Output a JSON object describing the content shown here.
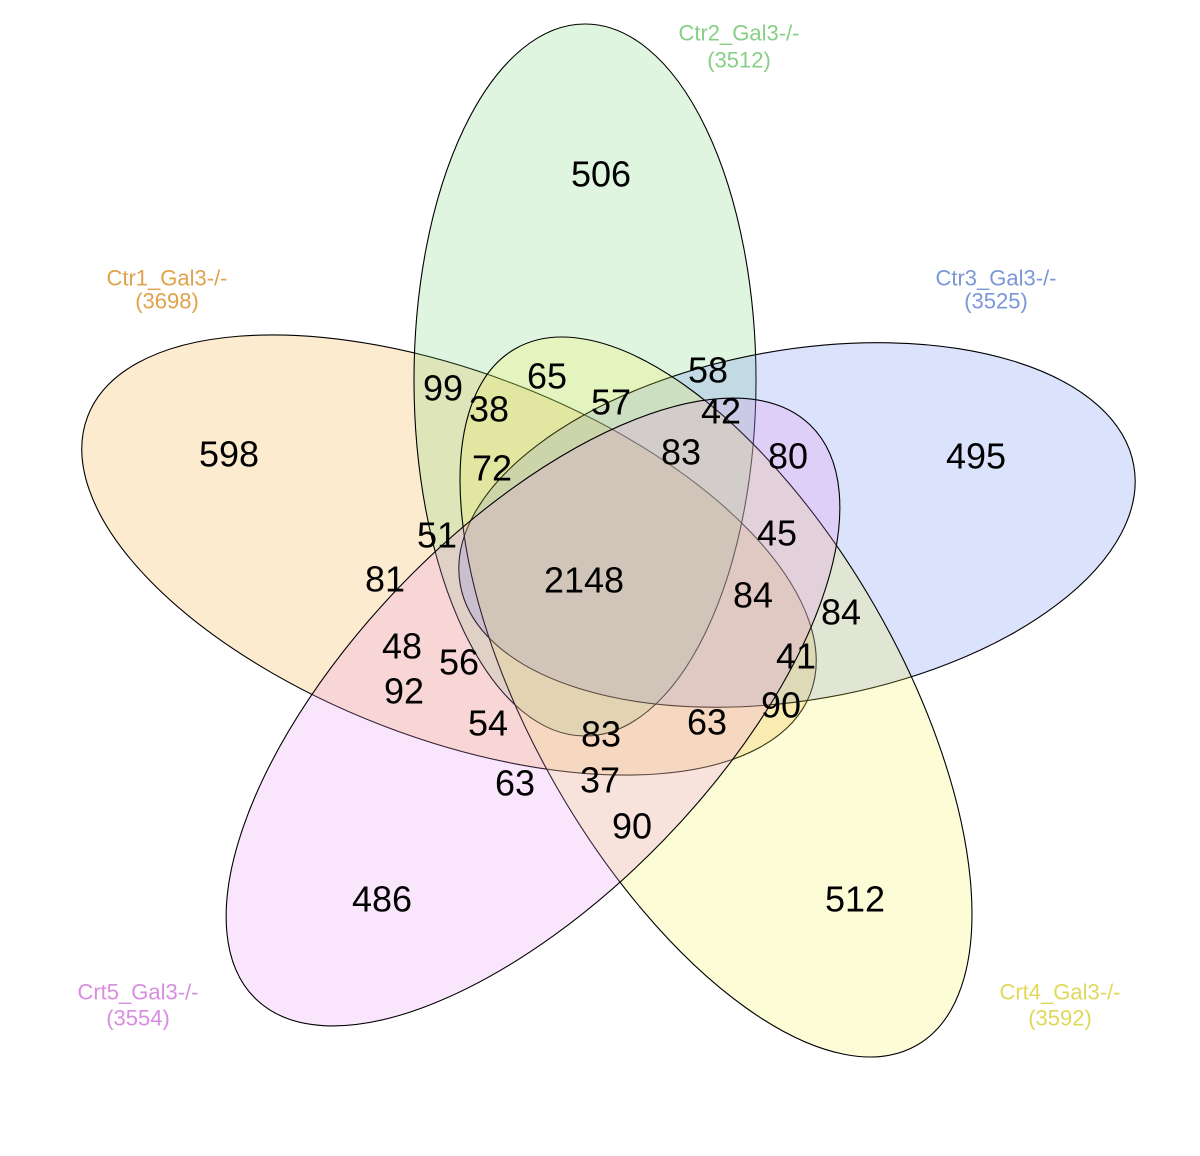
{
  "sets": [
    {
      "id": "ctr1",
      "name": "Ctr1_Gal3-/-",
      "total": "(3698)",
      "color": "#f5a623",
      "label_color": "#e0a24a"
    },
    {
      "id": "ctr2",
      "name": "Ctr2_Gal3-/-",
      "total": "(3512)",
      "color": "#6fd36f",
      "label_color": "#86cf86"
    },
    {
      "id": "ctr3",
      "name": "Ctr3_Gal3-/-",
      "total": "(3525)",
      "color": "#5b7cf0",
      "label_color": "#7b97d8"
    },
    {
      "id": "crt4",
      "name": "Crt4_Gal3-/-",
      "total": "(3592)",
      "color": "#f2f24a",
      "label_color": "#e0d85a"
    },
    {
      "id": "crt5",
      "name": "Crt5_Gal3-/-",
      "total": "(3554)",
      "color": "#e98cf0",
      "label_color": "#d88ee0"
    }
  ],
  "regions": [
    {
      "id": "only-ctr2",
      "value": "506"
    },
    {
      "id": "only-ctr1",
      "value": "598"
    },
    {
      "id": "only-ctr3",
      "value": "495"
    },
    {
      "id": "only-crt5",
      "value": "486"
    },
    {
      "id": "only-crt4",
      "value": "512"
    },
    {
      "id": "all-five",
      "value": "2148"
    },
    {
      "id": "r-99",
      "value": "99"
    },
    {
      "id": "r-65",
      "value": "65"
    },
    {
      "id": "r-58",
      "value": "58"
    },
    {
      "id": "r-38",
      "value": "38"
    },
    {
      "id": "r-57",
      "value": "57"
    },
    {
      "id": "r-42",
      "value": "42"
    },
    {
      "id": "r-72",
      "value": "72"
    },
    {
      "id": "r-83-top",
      "value": "83"
    },
    {
      "id": "r-80",
      "value": "80"
    },
    {
      "id": "r-51",
      "value": "51"
    },
    {
      "id": "r-45",
      "value": "45"
    },
    {
      "id": "r-81",
      "value": "81"
    },
    {
      "id": "r-84-inner",
      "value": "84"
    },
    {
      "id": "r-84-outer",
      "value": "84"
    },
    {
      "id": "r-48",
      "value": "48"
    },
    {
      "id": "r-56",
      "value": "56"
    },
    {
      "id": "r-41",
      "value": "41"
    },
    {
      "id": "r-92",
      "value": "92"
    },
    {
      "id": "r-90-right",
      "value": "90"
    },
    {
      "id": "r-54",
      "value": "54"
    },
    {
      "id": "r-83-bottom",
      "value": "83"
    },
    {
      "id": "r-63-right",
      "value": "63"
    },
    {
      "id": "r-63-left",
      "value": "63"
    },
    {
      "id": "r-37",
      "value": "37"
    },
    {
      "id": "r-90-bottom",
      "value": "90"
    }
  ]
}
